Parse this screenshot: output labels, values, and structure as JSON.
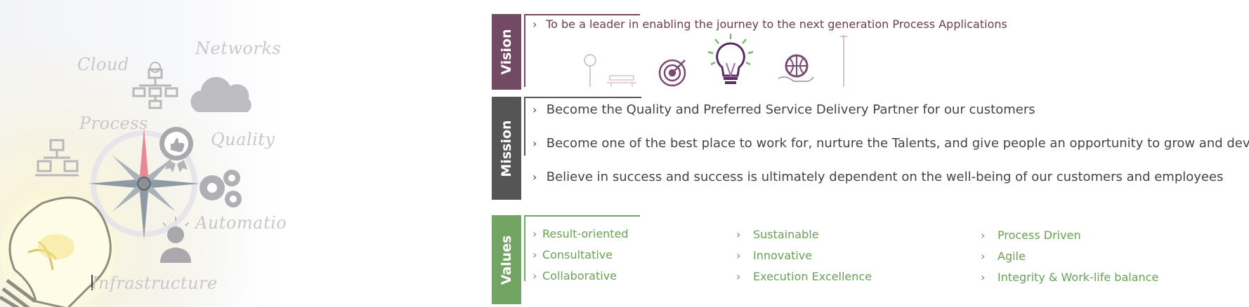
{
  "illustration": {
    "words": [
      "Cloud",
      "Networks",
      "Process",
      "Quality",
      "Automation",
      "Infrastructure"
    ]
  },
  "colors": {
    "vision": "#734a64",
    "mission": "#555555",
    "values": "#72a564",
    "vision_text": "#6b3d55",
    "values_text": "#6aa055"
  },
  "vision": {
    "label": "Vision",
    "items": [
      "To be a leader in enabling the journey to the next generation Process Applications"
    ],
    "icons": [
      "tree-icon",
      "bench-icon",
      "target-icon",
      "lightbulb-icon",
      "globe-in-hand-icon",
      "street-lamp-icon"
    ]
  },
  "mission": {
    "label": "Mission",
    "items": [
      "Become the Quality and Preferred Service Delivery Partner for our customers",
      "Become one of the best place to work for, nurture the Talents, and give people an opportunity to grow and develop",
      "Believe in success and success is ultimately dependent on the well-being of our customers and employees"
    ]
  },
  "values": {
    "label": "Values",
    "columns": [
      [
        "Result-oriented",
        "Consultative",
        "Collaborative"
      ],
      [
        "Sustainable",
        "Innovative",
        "Execution Excellence"
      ],
      [
        "Process Driven",
        "Agile",
        "Integrity & Work-life balance"
      ]
    ]
  }
}
